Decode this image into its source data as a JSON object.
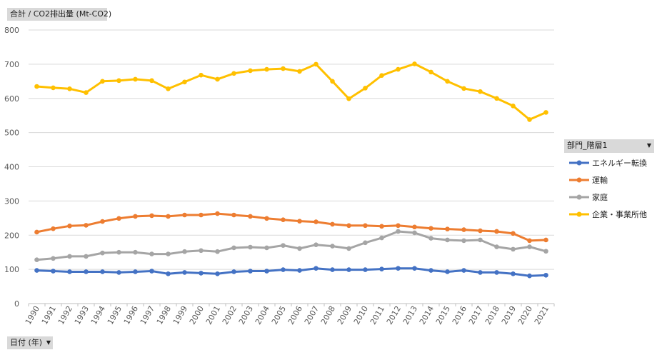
{
  "pivot": {
    "value_field_label": "合計 / CO2排出量 (Mt-CO2)",
    "legend_field_label": "部門_階層1",
    "axis_field_label": "日付 (年)",
    "dropdown_glyph": "▼"
  },
  "chart_data": {
    "type": "line",
    "x": [
      "1990",
      "1991",
      "1992",
      "1993",
      "1994",
      "1995",
      "1996",
      "1997",
      "1998",
      "1999",
      "2000",
      "2001",
      "2002",
      "2003",
      "2004",
      "2005",
      "2006",
      "2007",
      "2008",
      "2009",
      "2010",
      "2011",
      "2012",
      "2013",
      "2014",
      "2015",
      "2016",
      "2017",
      "2018",
      "2019",
      "2020",
      "2021"
    ],
    "ylim": [
      0,
      800
    ],
    "yticks": [
      0,
      100,
      200,
      300,
      400,
      500,
      600,
      700,
      800
    ],
    "grid": true,
    "legend": "right",
    "series": [
      {
        "name": "エネルギー転換",
        "color": "#4472c4",
        "values": [
          97,
          95,
          93,
          93,
          93,
          91,
          93,
          95,
          87,
          91,
          89,
          87,
          93,
          95,
          95,
          99,
          97,
          103,
          99,
          99,
          99,
          101,
          103,
          103,
          97,
          93,
          97,
          91,
          91,
          87,
          81,
          83
        ]
      },
      {
        "name": "運輸",
        "color": "#ed7d31",
        "values": [
          209,
          219,
          227,
          229,
          240,
          249,
          255,
          257,
          255,
          259,
          259,
          263,
          259,
          255,
          249,
          245,
          241,
          239,
          232,
          228,
          228,
          226,
          228,
          224,
          220,
          218,
          216,
          213,
          211,
          205,
          184,
          186
        ]
      },
      {
        "name": "家庭",
        "color": "#a5a5a5",
        "values": [
          128,
          132,
          138,
          138,
          148,
          150,
          150,
          145,
          145,
          152,
          155,
          152,
          163,
          165,
          163,
          170,
          161,
          172,
          168,
          161,
          178,
          192,
          211,
          207,
          191,
          186,
          184,
          186,
          166,
          159,
          166,
          153
        ]
      },
      {
        "name": "企業・事業所他",
        "color": "#ffc000",
        "values": [
          635,
          631,
          628,
          617,
          650,
          652,
          656,
          652,
          628,
          648,
          668,
          656,
          673,
          681,
          685,
          687,
          679,
          700,
          650,
          599,
          630,
          667,
          685,
          701,
          677,
          650,
          629,
          620,
          600,
          578,
          538,
          559
        ]
      }
    ]
  }
}
